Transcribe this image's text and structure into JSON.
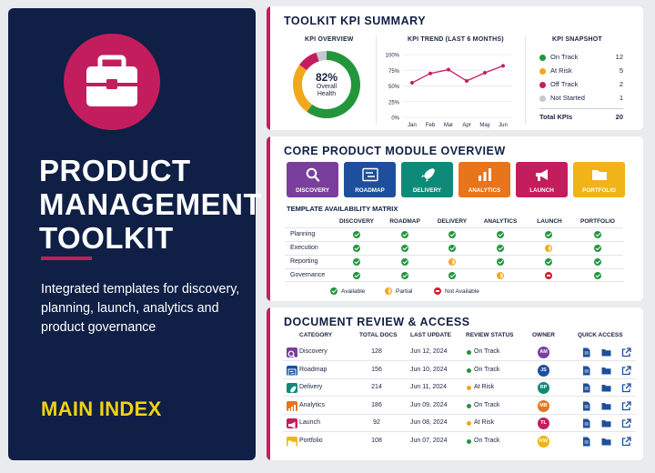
{
  "left_panel": {
    "icon": "briefcase-icon",
    "title_lines": [
      "PRODUCT",
      "MANAGEMENT",
      "TOOLKIT"
    ],
    "description": "Integrated templates for discovery, planning, launch, analytics and product governance",
    "index_label": "MAIN INDEX"
  },
  "kpi_summary": {
    "title": "TOOLKIT KPI SUMMARY",
    "overview_title": "KPI OVERVIEW",
    "overview_percent": "82%",
    "overview_label_1": "Overall",
    "overview_label_2": "Health",
    "trend_title": "KPI TREND (LAST 6 MONTHS)",
    "snapshot_title": "KPI SNAPSHOT",
    "snapshot": [
      {
        "label": "On Track",
        "value": "12",
        "color": "#22963b"
      },
      {
        "label": "At Risk",
        "value": "5",
        "color": "#f2a81c"
      },
      {
        "label": "Off Track",
        "value": "2",
        "color": "#c41d5e"
      },
      {
        "label": "Not Started",
        "value": "1",
        "color": "#c4c8d0"
      }
    ],
    "total_label": "Total KPIs",
    "total_value": "20"
  },
  "chart_data": [
    {
      "type": "pie",
      "title": "KPI OVERVIEW",
      "center_text": "82% Overall Health",
      "segments": [
        {
          "label": "On Track",
          "value": 12,
          "color": "#22963b"
        },
        {
          "label": "At Risk",
          "value": 5,
          "color": "#f2a81c"
        },
        {
          "label": "Off Track",
          "value": 2,
          "color": "#c41d5e"
        },
        {
          "label": "Not Started",
          "value": 1,
          "color": "#c4c8d0"
        }
      ]
    },
    {
      "type": "line",
      "title": "KPI TREND (LAST 6 MONTHS)",
      "categories": [
        "Jan",
        "Feb",
        "Mar",
        "Apr",
        "May",
        "Jun"
      ],
      "series": [
        {
          "values": [
            55,
            70,
            76,
            58,
            71,
            82
          ],
          "color": "#c41d5e"
        }
      ],
      "ylim": [
        0,
        100
      ],
      "yticks": [
        "100%",
        "75%",
        "50%",
        "25%",
        "0%"
      ],
      "grid": true
    }
  ],
  "modules": {
    "title": "CORE PRODUCT MODULE OVERVIEW",
    "items": [
      {
        "label": "DISCOVERY",
        "icon": "magnifier-icon",
        "color": "#7a3e9d"
      },
      {
        "label": "ROADMAP",
        "icon": "roadmap-board-icon",
        "color": "#1e4f9c"
      },
      {
        "label": "DELIVERY",
        "icon": "rocket-icon",
        "color": "#0f8a78"
      },
      {
        "label": "ANALYTICS",
        "icon": "bar-chart-icon",
        "color": "#e8741c"
      },
      {
        "label": "LAUNCH",
        "icon": "megaphone-icon",
        "color": "#c41d5e"
      },
      {
        "label": "PORTFOLIO",
        "icon": "folder-icon",
        "color": "#f0b318"
      }
    ],
    "matrix_title": "TEMPLATE AVAILABILITY MATRIX",
    "matrix_columns": [
      "DISCOVERY",
      "ROADMAP",
      "DELIVERY",
      "ANALYTICS",
      "LAUNCH",
      "PORTFOLIO"
    ],
    "matrix_rows": [
      {
        "label": "Planning",
        "cells": [
          "available",
          "available",
          "available",
          "available",
          "available",
          "available"
        ]
      },
      {
        "label": "Execution",
        "cells": [
          "available",
          "available",
          "available",
          "available",
          "partial",
          "available"
        ]
      },
      {
        "label": "Reporting",
        "cells": [
          "available",
          "available",
          "partial",
          "available",
          "available",
          "available"
        ]
      },
      {
        "label": "Governance",
        "cells": [
          "available",
          "available",
          "available",
          "partial",
          "not_available",
          "available"
        ]
      }
    ],
    "legend": [
      {
        "label": "Available",
        "status": "available"
      },
      {
        "label": "Partial",
        "status": "partial"
      },
      {
        "label": "Not Available",
        "status": "not_available"
      }
    ]
  },
  "documents": {
    "title": "DOCUMENT REVIEW & ACCESS",
    "columns": [
      "CATEGORY",
      "TOTAL DOCS",
      "LAST UPDATE",
      "REVIEW STATUS",
      "OWNER",
      "QUICK ACCESS"
    ],
    "rows": [
      {
        "category": "Discovery",
        "icon": "magnifier-icon",
        "color": "#7a3e9d",
        "docs": "128",
        "updated": "Jun 12, 2024",
        "status": "On Track",
        "status_color": "#22963b",
        "owner": "AM"
      },
      {
        "category": "Roadmap",
        "icon": "roadmap-board-icon",
        "color": "#1e4f9c",
        "docs": "156",
        "updated": "Jun 10, 2024",
        "status": "On Track",
        "status_color": "#22963b",
        "owner": "JS"
      },
      {
        "category": "Delivery",
        "icon": "rocket-icon",
        "color": "#0f8a78",
        "docs": "214",
        "updated": "Jun 11, 2024",
        "status": "At Risk",
        "status_color": "#f2a81c",
        "owner": "RP"
      },
      {
        "category": "Analytics",
        "icon": "bar-chart-icon",
        "color": "#e8741c",
        "docs": "186",
        "updated": "Jun 09, 2024",
        "status": "On Track",
        "status_color": "#22963b",
        "owner": "MB"
      },
      {
        "category": "Launch",
        "icon": "megaphone-icon",
        "color": "#c41d5e",
        "docs": "92",
        "updated": "Jun 08, 2024",
        "status": "At Risk",
        "status_color": "#f2a81c",
        "owner": "TL"
      },
      {
        "category": "Portfolio",
        "icon": "folder-icon",
        "color": "#f0b318",
        "docs": "108",
        "updated": "Jun 07, 2024",
        "status": "On Track",
        "status_color": "#22963b",
        "owner": "KW"
      }
    ],
    "quick_access_icons": [
      "document-icon",
      "folder-open-icon",
      "external-link-icon"
    ]
  }
}
